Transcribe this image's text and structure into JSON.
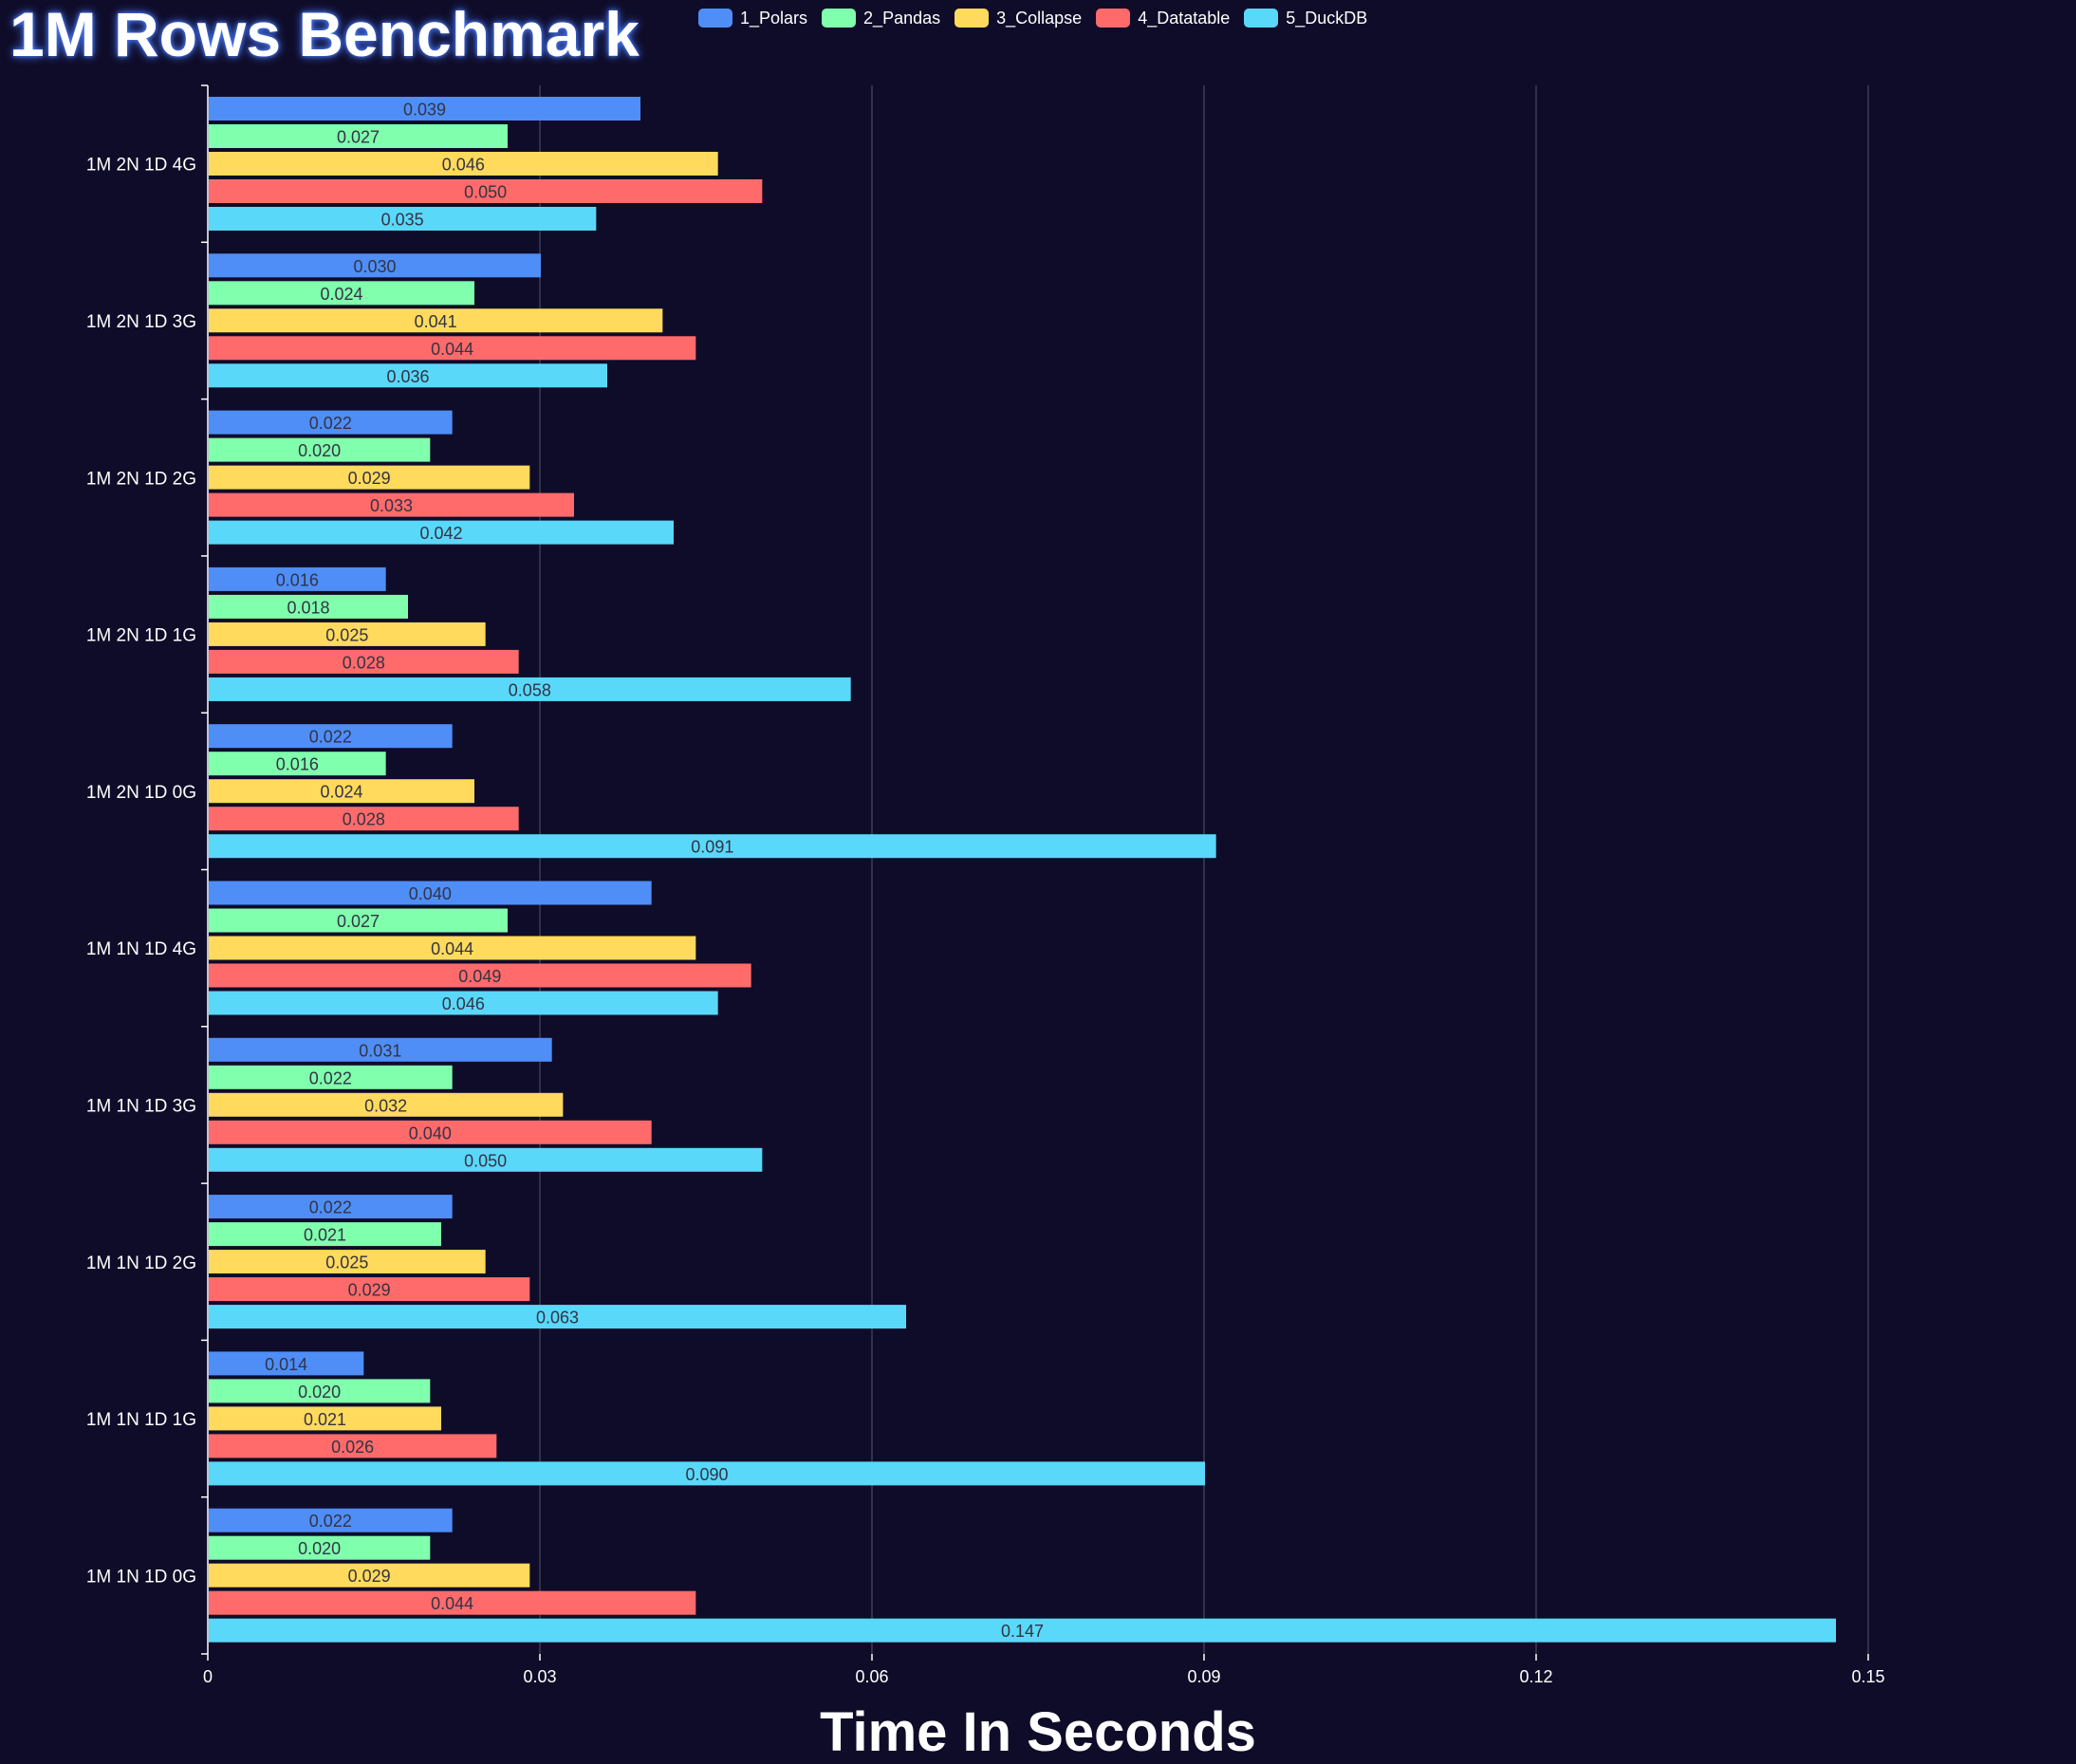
{
  "chart_data": {
    "type": "bar",
    "orientation": "horizontal",
    "title": "1M Rows Benchmark",
    "xlabel": "Time In Seconds",
    "ylabel": "",
    "xlim": [
      0,
      0.16
    ],
    "x_ticks": [
      "0",
      "0.03",
      "0.06",
      "0.09",
      "0.12",
      "0.15"
    ],
    "grid": "vertical",
    "legend_position": "top",
    "categories": [
      "1M 2N 1D 4G",
      "1M 2N 1D 3G",
      "1M 2N 1D 2G",
      "1M 2N 1D 1G",
      "1M 2N 1D 0G",
      "1M 1N 1D 4G",
      "1M 1N 1D 3G",
      "1M 1N 1D 2G",
      "1M 1N 1D 1G",
      "1M 1N 1D 0G"
    ],
    "series": [
      {
        "name": "1_Polars",
        "color": "#4f8ef7",
        "values": [
          0.039,
          0.03,
          0.022,
          0.016,
          0.022,
          0.04,
          0.031,
          0.022,
          0.014,
          0.022
        ],
        "labels": [
          "0.039",
          "0.030",
          "0.022",
          "0.016",
          "0.022",
          "0.040",
          "0.031",
          "0.022",
          "0.014",
          "0.022"
        ]
      },
      {
        "name": "2_Pandas",
        "color": "#80ffad",
        "values": [
          0.027,
          0.024,
          0.02,
          0.018,
          0.016,
          0.027,
          0.022,
          0.021,
          0.02,
          0.02
        ],
        "labels": [
          "0.027",
          "0.024",
          "0.020",
          "0.018",
          "0.016",
          "0.027",
          "0.022",
          "0.021",
          "0.020",
          "0.020"
        ]
      },
      {
        "name": "3_Collapse",
        "color": "#ffda5c",
        "values": [
          0.046,
          0.041,
          0.029,
          0.025,
          0.024,
          0.044,
          0.032,
          0.025,
          0.021,
          0.029
        ],
        "labels": [
          "0.046",
          "0.041",
          "0.029",
          "0.025",
          "0.024",
          "0.044",
          "0.032",
          "0.025",
          "0.021",
          "0.029"
        ]
      },
      {
        "name": "4_Datatable",
        "color": "#ff6b6b",
        "values": [
          0.05,
          0.044,
          0.033,
          0.028,
          0.028,
          0.049,
          0.04,
          0.029,
          0.026,
          0.044
        ],
        "labels": [
          "0.050",
          "0.044",
          "0.033",
          "0.028",
          "0.028",
          "0.049",
          "0.040",
          "0.029",
          "0.026",
          "0.044"
        ]
      },
      {
        "name": "5_DuckDB",
        "color": "#5ad8fa",
        "values": [
          0.035,
          0.036,
          0.042,
          0.058,
          0.091,
          0.046,
          0.05,
          0.063,
          0.09,
          0.147
        ],
        "labels": [
          "0.035",
          "0.036",
          "0.042",
          "0.058",
          "0.091",
          "0.046",
          "0.050",
          "0.063",
          "0.090",
          "0.147"
        ]
      }
    ]
  }
}
